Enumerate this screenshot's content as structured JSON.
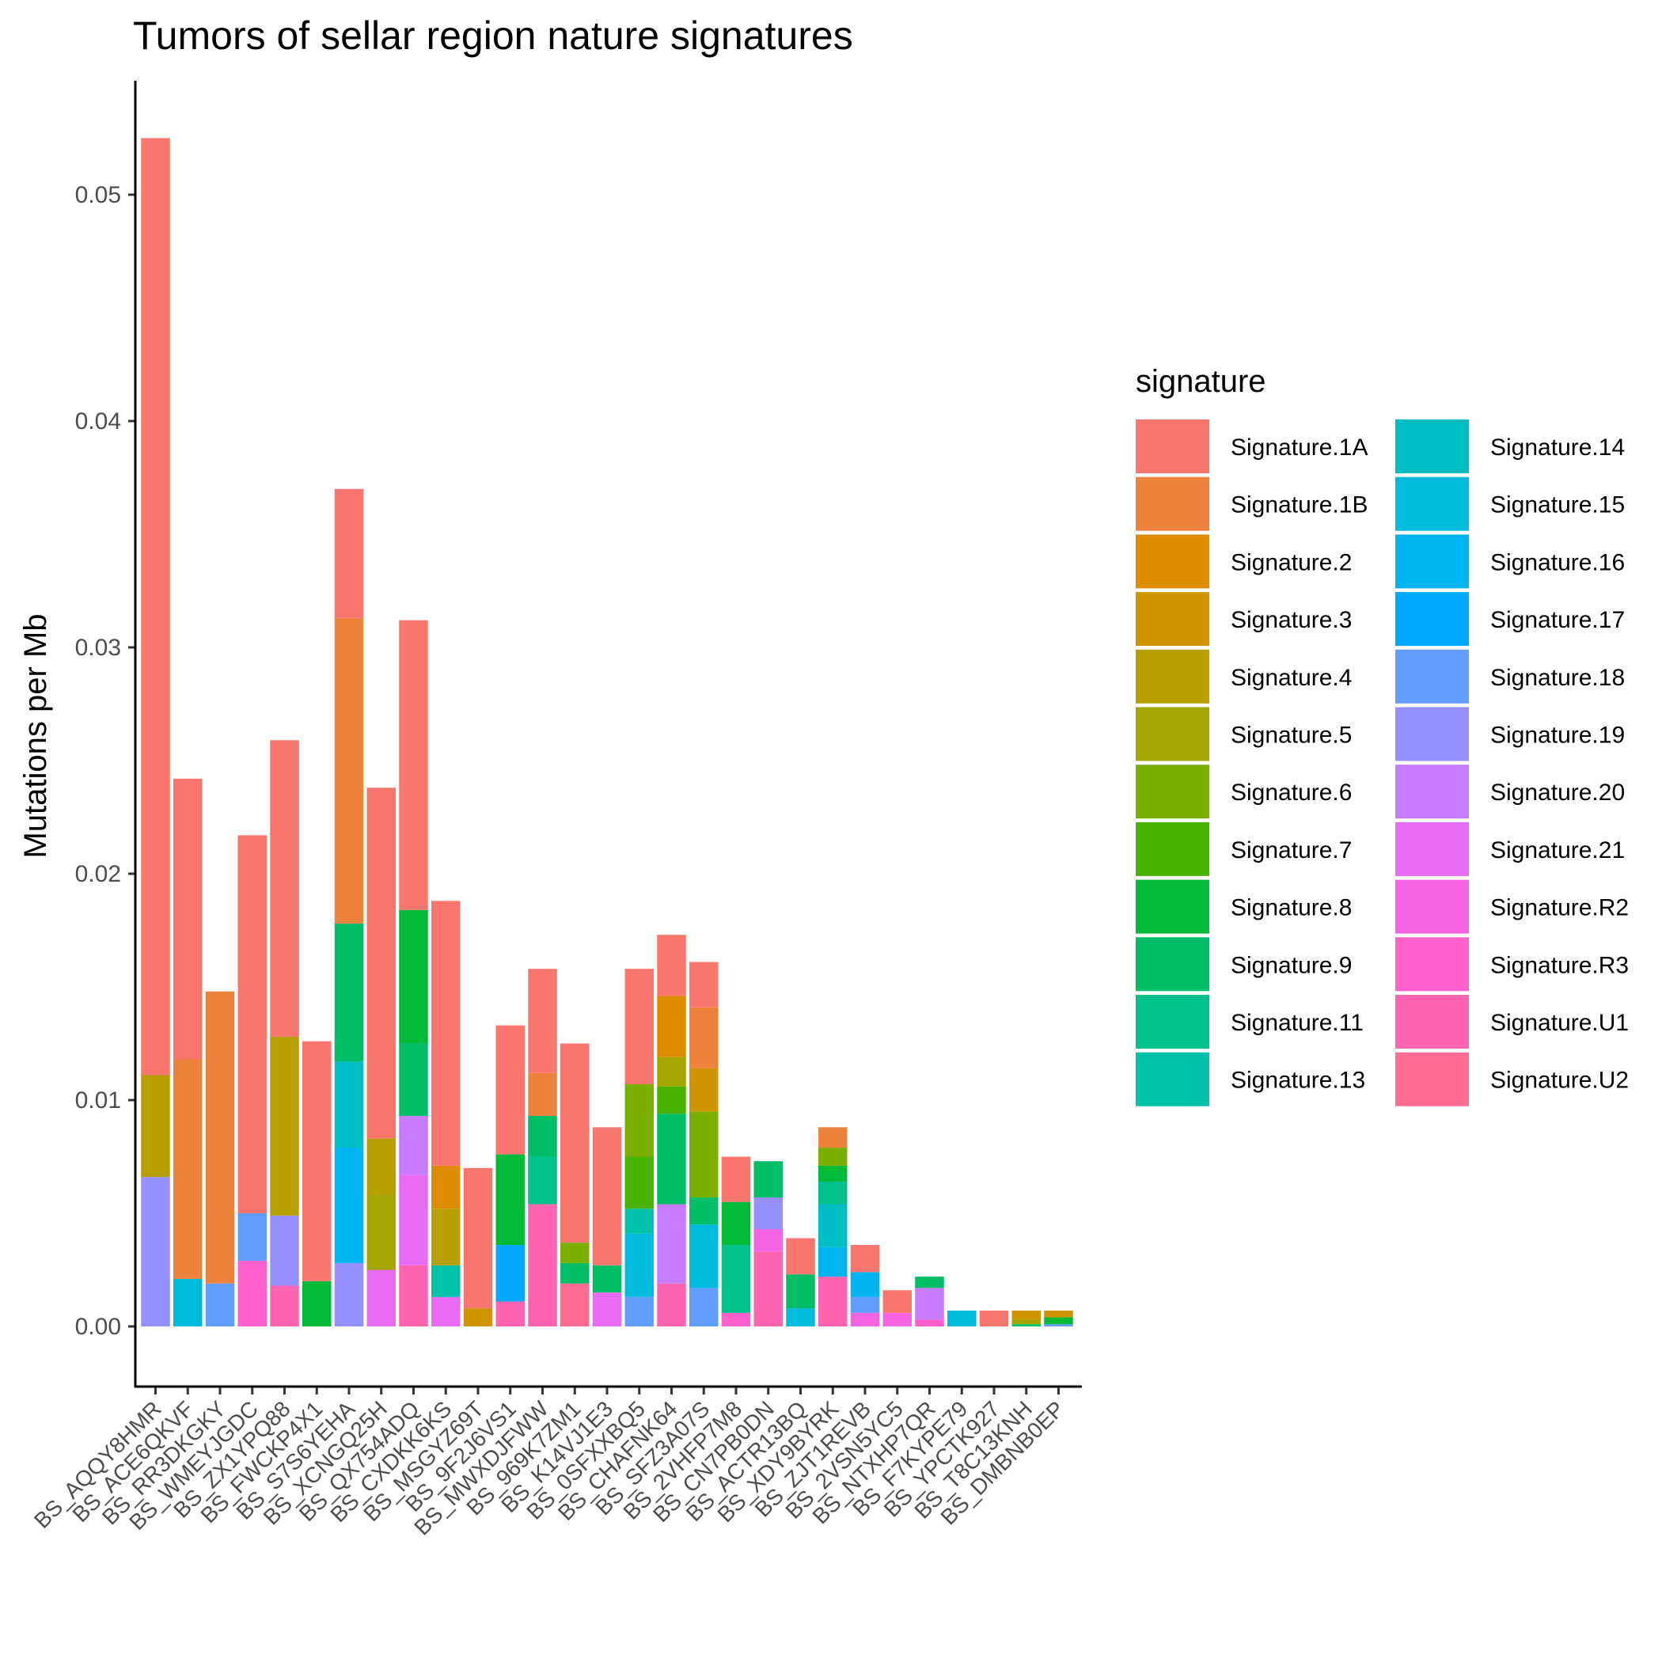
{
  "chart_data": {
    "type": "stacked-bar",
    "title": "Tumors of sellar region nature signatures",
    "ylabel": "Mutations per Mb",
    "xlabel": "",
    "ylim": [
      -0.0025,
      0.055
    ],
    "yticks": [
      0.0,
      0.01,
      0.02,
      0.03,
      0.04,
      0.05
    ],
    "ytick_labels": [
      "0.00",
      "0.01",
      "0.02",
      "0.03",
      "0.04",
      "0.05"
    ],
    "legend_title": "signature",
    "legend_position": "right",
    "grid": false,
    "signatures": [
      {
        "name": "Signature.1A",
        "color": "#F8766D"
      },
      {
        "name": "Signature.1B",
        "color": "#EC823C"
      },
      {
        "name": "Signature.2",
        "color": "#DE8C00"
      },
      {
        "name": "Signature.3",
        "color": "#CF9400"
      },
      {
        "name": "Signature.4",
        "color": "#B79F00"
      },
      {
        "name": "Signature.5",
        "color": "#A3A500"
      },
      {
        "name": "Signature.6",
        "color": "#7CAE00"
      },
      {
        "name": "Signature.7",
        "color": "#49B400"
      },
      {
        "name": "Signature.8",
        "color": "#00BA38"
      },
      {
        "name": "Signature.9",
        "color": "#00BE67"
      },
      {
        "name": "Signature.11",
        "color": "#00C08B"
      },
      {
        "name": "Signature.13",
        "color": "#00C1A9"
      },
      {
        "name": "Signature.14",
        "color": "#00BFC4"
      },
      {
        "name": "Signature.15",
        "color": "#00BBDB"
      },
      {
        "name": "Signature.16",
        "color": "#00B4EF"
      },
      {
        "name": "Signature.17",
        "color": "#00A9FF"
      },
      {
        "name": "Signature.18",
        "color": "#619CFF"
      },
      {
        "name": "Signature.19",
        "color": "#9590FF"
      },
      {
        "name": "Signature.20",
        "color": "#C77CFF"
      },
      {
        "name": "Signature.21",
        "color": "#E76BF3"
      },
      {
        "name": "Signature.R2",
        "color": "#F564E3"
      },
      {
        "name": "Signature.R3",
        "color": "#FF61CC"
      },
      {
        "name": "Signature.U1",
        "color": "#FF64B0"
      },
      {
        "name": "Signature.U2",
        "color": "#FF6C91"
      }
    ],
    "samples": [
      {
        "name": "BS_AQQY8HMR",
        "segments": [
          [
            "Signature.19",
            0.0066
          ],
          [
            "Signature.4",
            0.0045
          ],
          [
            "Signature.1A",
            0.0414
          ]
        ]
      },
      {
        "name": "BS_ACE6QKVF",
        "segments": [
          [
            "Signature.15",
            0.0021
          ],
          [
            "Signature.1B",
            0.0097
          ],
          [
            "Signature.1A",
            0.0124
          ]
        ]
      },
      {
        "name": "BS_RR3DKGKY",
        "segments": [
          [
            "Signature.18",
            0.0019
          ],
          [
            "Signature.1B",
            0.0129
          ]
        ]
      },
      {
        "name": "BS_WMEYJGDC",
        "segments": [
          [
            "Signature.R3",
            0.0029
          ],
          [
            "Signature.18",
            0.0021
          ],
          [
            "Signature.1A",
            0.0167
          ]
        ]
      },
      {
        "name": "BS_ZX1YPQ88",
        "segments": [
          [
            "Signature.U1",
            0.0018
          ],
          [
            "Signature.19",
            0.0031
          ],
          [
            "Signature.4",
            0.0079
          ],
          [
            "Signature.1A",
            0.0131
          ]
        ]
      },
      {
        "name": "BS_FWCKP4X1",
        "segments": [
          [
            "Signature.8",
            0.002
          ],
          [
            "Signature.1A",
            0.0106
          ]
        ]
      },
      {
        "name": "BS_S7S6YEHA",
        "segments": [
          [
            "Signature.19",
            0.0028
          ],
          [
            "Signature.16",
            0.0051
          ],
          [
            "Signature.14",
            0.0038
          ],
          [
            "Signature.9",
            0.0061
          ],
          [
            "Signature.1B",
            0.0135
          ],
          [
            "Signature.1A",
            0.0057
          ]
        ]
      },
      {
        "name": "BS_XCNGQ25H",
        "segments": [
          [
            "Signature.21",
            0.0025
          ],
          [
            "Signature.5",
            0.0033
          ],
          [
            "Signature.4",
            0.0025
          ],
          [
            "Signature.1A",
            0.0155
          ]
        ]
      },
      {
        "name": "BS_QX754ADQ",
        "segments": [
          [
            "Signature.U1",
            0.0027
          ],
          [
            "Signature.21",
            0.004
          ],
          [
            "Signature.20",
            0.0026
          ],
          [
            "Signature.9",
            0.0032
          ],
          [
            "Signature.8",
            0.0059
          ],
          [
            "Signature.1A",
            0.0128
          ]
        ]
      },
      {
        "name": "BS_CXDKK6KS",
        "segments": [
          [
            "Signature.21",
            0.0013
          ],
          [
            "Signature.13",
            0.0014
          ],
          [
            "Signature.4",
            0.0025
          ],
          [
            "Signature.2",
            0.0019
          ],
          [
            "Signature.1A",
            0.0117
          ]
        ]
      },
      {
        "name": "BS_MSGYZ69T",
        "segments": [
          [
            "Signature.3",
            0.0008
          ],
          [
            "Signature.1A",
            0.0062
          ]
        ]
      },
      {
        "name": "BS_9F2J6VS1",
        "segments": [
          [
            "Signature.U1",
            0.0011
          ],
          [
            "Signature.17",
            0.0025
          ],
          [
            "Signature.8",
            0.004
          ],
          [
            "Signature.1A",
            0.0057
          ]
        ]
      },
      {
        "name": "BS_MWXDJFWW",
        "segments": [
          [
            "Signature.U1",
            0.0054
          ],
          [
            "Signature.11",
            0.0021
          ],
          [
            "Signature.9",
            0.0018
          ],
          [
            "Signature.1B",
            0.0019
          ],
          [
            "Signature.1A",
            0.0046
          ]
        ]
      },
      {
        "name": "BS_969K7ZM1",
        "segments": [
          [
            "Signature.U2",
            0.0019
          ],
          [
            "Signature.9",
            0.0009
          ],
          [
            "Signature.6",
            0.0009
          ],
          [
            "Signature.1A",
            0.0088
          ]
        ]
      },
      {
        "name": "BS_K14VJ1E3",
        "segments": [
          [
            "Signature.21",
            0.0015
          ],
          [
            "Signature.9",
            0.0012
          ],
          [
            "Signature.1A",
            0.0061
          ]
        ]
      },
      {
        "name": "BS_0SFXXBQ5",
        "segments": [
          [
            "Signature.18",
            0.0013
          ],
          [
            "Signature.15",
            0.0028
          ],
          [
            "Signature.13",
            0.0011
          ],
          [
            "Signature.7",
            0.0023
          ],
          [
            "Signature.6",
            0.0032
          ],
          [
            "Signature.1A",
            0.0051
          ]
        ]
      },
      {
        "name": "BS_CHAFNK64",
        "segments": [
          [
            "Signature.U1",
            0.0019
          ],
          [
            "Signature.20",
            0.0035
          ],
          [
            "Signature.9",
            0.004
          ],
          [
            "Signature.7",
            0.0012
          ],
          [
            "Signature.5",
            0.0013
          ],
          [
            "Signature.2",
            0.0027
          ],
          [
            "Signature.1A",
            0.0027
          ]
        ]
      },
      {
        "name": "BS_SFZ3A07S",
        "segments": [
          [
            "Signature.18",
            0.0017
          ],
          [
            "Signature.15",
            0.0028
          ],
          [
            "Signature.9",
            0.0012
          ],
          [
            "Signature.6",
            0.0038
          ],
          [
            "Signature.3",
            0.0019
          ],
          [
            "Signature.1B",
            0.0027
          ],
          [
            "Signature.1A",
            0.002
          ]
        ]
      },
      {
        "name": "BS_2VHFP7M8",
        "segments": [
          [
            "Signature.R3",
            0.0006
          ],
          [
            "Signature.11",
            0.003
          ],
          [
            "Signature.8",
            0.0019
          ],
          [
            "Signature.1A",
            0.002
          ]
        ]
      },
      {
        "name": "BS_CN7PB0DN",
        "segments": [
          [
            "Signature.U1",
            0.0033
          ],
          [
            "Signature.R2",
            0.001
          ],
          [
            "Signature.19",
            0.0014
          ],
          [
            "Signature.9",
            0.0016
          ]
        ]
      },
      {
        "name": "BS_ACTR13BQ",
        "segments": [
          [
            "Signature.15",
            0.0008
          ],
          [
            "Signature.9",
            0.0015
          ],
          [
            "Signature.1A",
            0.0016
          ]
        ]
      },
      {
        "name": "BS_XDY9BYRK",
        "segments": [
          [
            "Signature.U1",
            0.0022
          ],
          [
            "Signature.16",
            0.0013
          ],
          [
            "Signature.14",
            0.0019
          ],
          [
            "Signature.11",
            0.001
          ],
          [
            "Signature.8",
            0.0007
          ],
          [
            "Signature.6",
            0.0008
          ],
          [
            "Signature.1B",
            0.0009
          ]
        ]
      },
      {
        "name": "BS_ZJT1REVB",
        "segments": [
          [
            "Signature.R2",
            0.0006
          ],
          [
            "Signature.18",
            0.0007
          ],
          [
            "Signature.16",
            0.0011
          ],
          [
            "Signature.1A",
            0.0012
          ]
        ]
      },
      {
        "name": "BS_2VSN5YC5",
        "segments": [
          [
            "Signature.R2",
            0.0006
          ],
          [
            "Signature.1A",
            0.001
          ]
        ]
      },
      {
        "name": "BS_NTXHP7QR",
        "segments": [
          [
            "Signature.R3",
            0.0003
          ],
          [
            "Signature.20",
            0.0014
          ],
          [
            "Signature.9",
            0.0005
          ]
        ]
      },
      {
        "name": "BS_F7KYPE79",
        "segments": [
          [
            "Signature.15",
            0.0007
          ]
        ]
      },
      {
        "name": "BS_YPCTK927",
        "segments": [
          [
            "Signature.1A",
            0.0007
          ]
        ]
      },
      {
        "name": "BS_T8C13KNH",
        "segments": [
          [
            "Signature.9",
            0.0001
          ],
          [
            "Signature.5",
            0.0002
          ],
          [
            "Signature.3",
            0.0004
          ]
        ]
      },
      {
        "name": "BS_DMBNB0EP",
        "segments": [
          [
            "Signature.18",
            0.0001
          ],
          [
            "Signature.8",
            0.0003
          ],
          [
            "Signature.3",
            0.0003
          ]
        ]
      }
    ]
  }
}
